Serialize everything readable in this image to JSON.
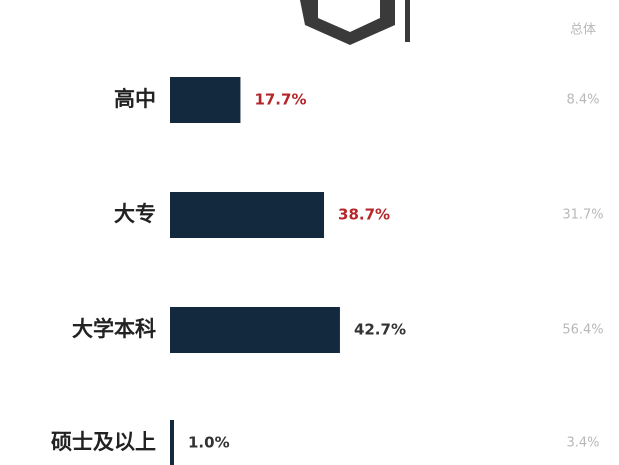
{
  "chart_data": {
    "type": "bar",
    "categories": [
      "高中",
      "大专",
      "大学本科",
      "硕士及以上"
    ],
    "values": [
      17.7,
      38.7,
      42.7,
      1.0
    ],
    "value_labels": [
      "17.7%",
      "38.7%",
      "42.7%",
      "1.0%"
    ],
    "color": "#13293d",
    "value_label_colors": [
      "#b5262b",
      "#b5262b",
      "#333333",
      "#333333"
    ],
    "overall": {
      "name": "总体",
      "values": [
        8.4,
        31.7,
        56.4,
        3.4
      ],
      "value_labels": [
        "8.4%",
        "31.7%",
        "56.4%",
        "3.4%"
      ],
      "color": "#b8b8b8"
    }
  }
}
